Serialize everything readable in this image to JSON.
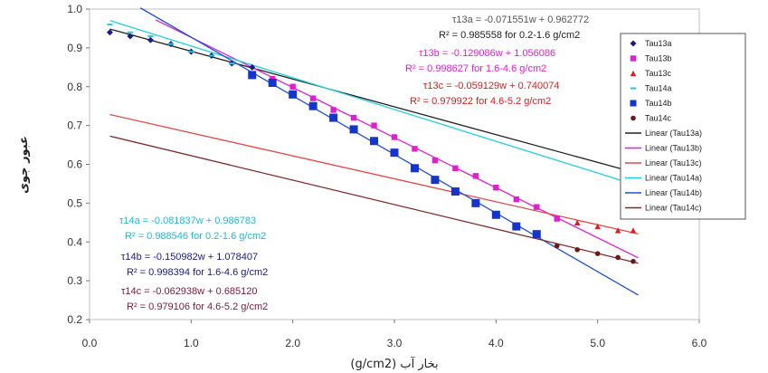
{
  "chart_data": {
    "type": "scatter",
    "xlabel": "بخار آب (g/cm2)",
    "ylabel": "عبور جوی",
    "xlim": [
      0.0,
      6.0
    ],
    "ylim": [
      0.2,
      1.0
    ],
    "xticks": [
      "0.0",
      "1.0",
      "2.0",
      "3.0",
      "4.0",
      "5.0",
      "6.0"
    ],
    "yticks": [
      "0.2",
      "0.3",
      "0.4",
      "0.5",
      "0.6",
      "0.7",
      "0.8",
      "0.9",
      "1.0"
    ],
    "legend_position": "right",
    "series": [
      {
        "name": "Tau13a",
        "marker": "diamond",
        "color": "#1a1a8c",
        "size": 3.5,
        "x": [
          0.2,
          0.4,
          0.6,
          0.8,
          1.0,
          1.2,
          1.4,
          1.6
        ],
        "y": [
          0.94,
          0.93,
          0.92,
          0.91,
          0.89,
          0.88,
          0.86,
          0.85
        ]
      },
      {
        "name": "Tau13b",
        "marker": "square",
        "color": "#e020d0",
        "size": 3.2,
        "x": [
          1.8,
          2.0,
          2.2,
          2.4,
          2.6,
          2.8,
          3.0,
          3.2,
          3.4,
          3.6,
          3.8,
          4.0,
          4.2,
          4.4,
          4.6
        ],
        "y": [
          0.82,
          0.8,
          0.77,
          0.74,
          0.72,
          0.7,
          0.67,
          0.64,
          0.61,
          0.59,
          0.57,
          0.54,
          0.51,
          0.49,
          0.46
        ]
      },
      {
        "name": "Tau13c",
        "marker": "triangle",
        "color": "#d42020",
        "size": 3.2,
        "x": [
          4.8,
          5.0,
          5.2,
          5.35
        ],
        "y": [
          0.45,
          0.44,
          0.43,
          0.43
        ]
      },
      {
        "name": "Tau14a",
        "marker": "dash",
        "color": "#20c8d8",
        "size": 3,
        "x": [
          0.2,
          0.4,
          0.6,
          0.8,
          1.0,
          1.2,
          1.4
        ],
        "y": [
          0.96,
          0.94,
          0.93,
          0.91,
          0.89,
          0.88,
          0.86
        ]
      },
      {
        "name": "Tau14b",
        "marker": "square",
        "color": "#1535c8",
        "size": 4.5,
        "x": [
          1.6,
          1.8,
          2.0,
          2.2,
          2.4,
          2.6,
          2.8,
          3.0,
          3.2,
          3.4,
          3.6,
          3.8,
          4.0,
          4.2,
          4.4
        ],
        "y": [
          0.83,
          0.81,
          0.78,
          0.75,
          0.72,
          0.69,
          0.66,
          0.63,
          0.59,
          0.56,
          0.53,
          0.5,
          0.47,
          0.44,
          0.42
        ]
      },
      {
        "name": "Tau14c",
        "marker": "circle",
        "color": "#6a1a1a",
        "size": 2.8,
        "x": [
          4.6,
          4.8,
          5.0,
          5.2,
          5.35
        ],
        "y": [
          0.39,
          0.38,
          0.37,
          0.36,
          0.35
        ]
      }
    ],
    "trendlines": [
      {
        "name": "Linear (Tau13a)",
        "color": "#222222",
        "slope": -0.071551,
        "intercept": 0.962772,
        "x": [
          0.2,
          5.4
        ]
      },
      {
        "name": "Linear (Tau13b)",
        "color": "#e020d0",
        "slope": -0.129086,
        "intercept": 1.056086,
        "x": [
          0.65,
          5.4
        ]
      },
      {
        "name": "Linear (Tau13c)",
        "color": "#e04848",
        "slope": -0.059129,
        "intercept": 0.740074,
        "x": [
          0.2,
          5.4
        ]
      },
      {
        "name": "Linear (Tau14a)",
        "color": "#20d0e0",
        "slope": -0.081837,
        "intercept": 0.986783,
        "x": [
          0.2,
          5.4
        ]
      },
      {
        "name": "Linear (Tau14b)",
        "color": "#2050d0",
        "slope": -0.150982,
        "intercept": 1.078407,
        "x": [
          0.5,
          5.4
        ]
      },
      {
        "name": "Linear (Tau14c)",
        "color": "#7a2a2a",
        "slope": -0.062938,
        "intercept": 0.68512,
        "x": [
          0.2,
          5.4
        ]
      }
    ],
    "annotations": [
      {
        "color": "#555555",
        "eq": "τ13a = -0.071551w + 0.962772",
        "r2": "R² = 0.985558  for 0.2-1.6 g/cm2",
        "r2_color": "#222222"
      },
      {
        "color": "#e020d0",
        "eq": "τ13b = -0.129086w + 1.056086",
        "r2": "R² = 0.998627  for 1.6-4.6 g/cm2",
        "r2_color": "#e020d0"
      },
      {
        "color": "#d42020",
        "eq": "τ13c = -0.059129w + 0.740074",
        "r2": "R² = 0.979922  for 4.6-5.2 g/cm2",
        "r2_color": "#d42020"
      },
      {
        "color": "#20b8d8",
        "eq": "τ14a = -0.081837w + 0.986783",
        "r2": "R² = 0.988546  for 0.2-1.6 g/cm2",
        "r2_color": "#20b8d8"
      },
      {
        "color": "#1a1a8c",
        "eq": "τ14b = -0.150982w + 1.078407",
        "r2": "R² = 0.998394  for 1.6-4.6 g/cm2",
        "r2_color": "#1a1a8c"
      },
      {
        "color": "#7a1a3a",
        "eq": "τ14c = -0.062938w + 0.685120",
        "r2": "R² = 0.979106  for 4.6-5.2 g/cm2",
        "r2_color": "#7a1a3a"
      }
    ]
  }
}
